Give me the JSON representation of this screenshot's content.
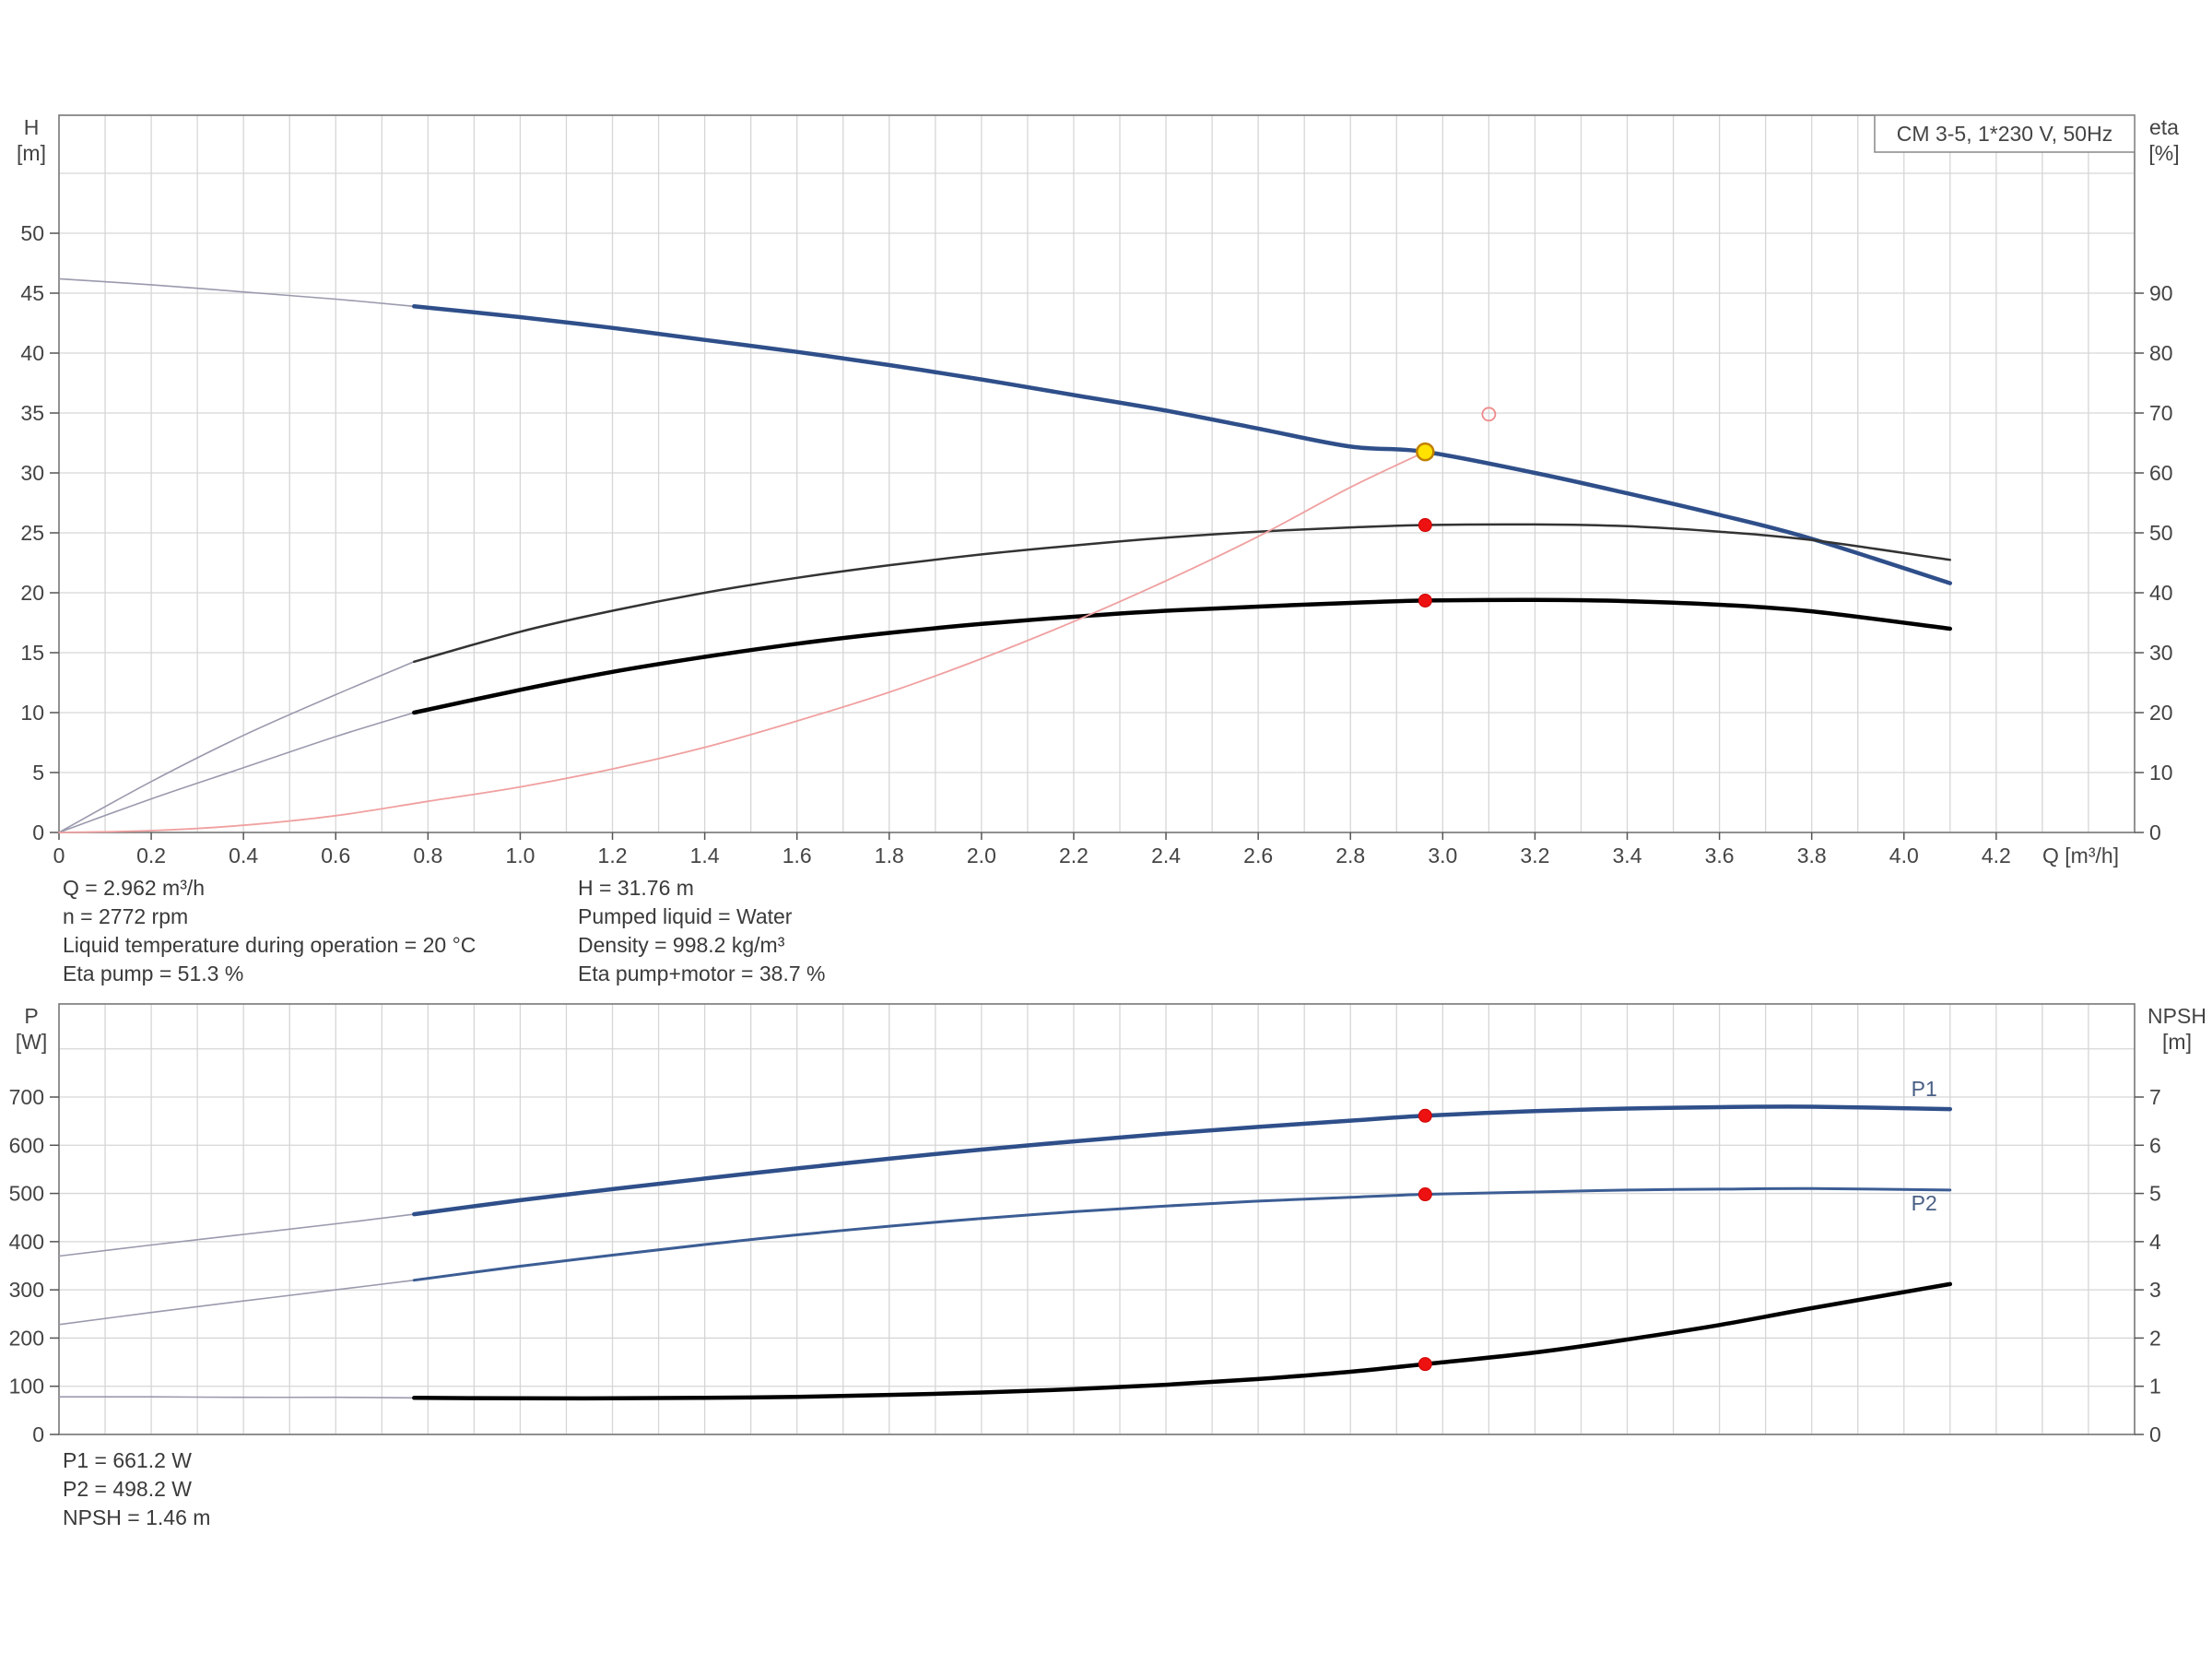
{
  "chart_data": [
    {
      "type": "line",
      "legend_box": "CM 3-5, 1*230 V, 50Hz",
      "legend_placement": "top-right",
      "grid": true,
      "x_axis": {
        "label": "Q [m³/h]",
        "range": [
          0,
          4.5
        ],
        "ticks": [
          "0",
          "0.2",
          "0.4",
          "0.6",
          "0.8",
          "1.0",
          "1.2",
          "1.4",
          "1.6",
          "1.8",
          "2.0",
          "2.2",
          "2.4",
          "2.6",
          "2.8",
          "3.0",
          "3.2",
          "3.4",
          "3.6",
          "3.8",
          "4.0",
          "4.2"
        ]
      },
      "y_left": {
        "label_top": "H",
        "label_unit": "[m]",
        "range": [
          0,
          50
        ],
        "ticks": [
          "0",
          "5",
          "10",
          "15",
          "20",
          "25",
          "30",
          "35",
          "40",
          "45",
          "50"
        ]
      },
      "y_right": {
        "label_top": "eta",
        "label_unit": "[%]",
        "range": [
          0,
          100
        ],
        "ticks": [
          "0",
          "10",
          "20",
          "30",
          "40",
          "50",
          "60",
          "70",
          "80",
          "90"
        ]
      },
      "series": [
        {
          "key": "H",
          "axis": "left",
          "color": "#2f4f8a",
          "thin_x": [
            0,
            0.2,
            0.4,
            0.6,
            0.77
          ],
          "thin_y": [
            46.2,
            45.7,
            45.1,
            44.5,
            43.9
          ],
          "x": [
            0.77,
            1.0,
            1.2,
            1.4,
            1.6,
            1.8,
            2.0,
            2.2,
            2.4,
            2.6,
            2.8,
            2.962,
            3.2,
            3.4,
            3.6,
            3.8,
            4.1
          ],
          "y": [
            43.9,
            43.0,
            42.1,
            41.1,
            40.1,
            39.0,
            37.8,
            36.5,
            35.2,
            33.7,
            32.2,
            31.76,
            30.0,
            28.3,
            26.5,
            24.5,
            20.8
          ]
        },
        {
          "key": "eta_pump",
          "axis": "right",
          "color": "#333333",
          "thin_x": [
            0,
            0.2,
            0.4,
            0.6,
            0.77
          ],
          "thin_y": [
            0,
            8.5,
            16.2,
            23.0,
            28.5
          ],
          "x": [
            0.77,
            1.0,
            1.2,
            1.4,
            1.6,
            1.8,
            2.0,
            2.2,
            2.4,
            2.6,
            2.8,
            2.962,
            3.2,
            3.4,
            3.6,
            3.8,
            4.1
          ],
          "y": [
            28.5,
            33.5,
            37.0,
            40.0,
            42.5,
            44.6,
            46.4,
            47.9,
            49.2,
            50.2,
            50.9,
            51.3,
            51.4,
            51.1,
            50.2,
            48.8,
            45.5
          ]
        },
        {
          "key": "eta_pump_motor",
          "axis": "right",
          "color": "#000000",
          "thin_x": [
            0,
            0.2,
            0.4,
            0.6,
            0.77
          ],
          "thin_y": [
            0,
            5.6,
            10.8,
            16.0,
            20.0
          ],
          "x": [
            0.77,
            1.0,
            1.2,
            1.4,
            1.6,
            1.8,
            2.0,
            2.2,
            2.4,
            2.6,
            2.8,
            2.962,
            3.2,
            3.4,
            3.6,
            3.8,
            4.1
          ],
          "y": [
            20.0,
            23.8,
            26.8,
            29.3,
            31.5,
            33.3,
            34.8,
            36.0,
            37.0,
            37.7,
            38.3,
            38.7,
            38.8,
            38.6,
            38.0,
            36.9,
            34.0
          ]
        },
        {
          "key": "system",
          "axis": "left",
          "color": "#f0a0a0",
          "x": [
            0,
            0.2,
            0.4,
            0.6,
            0.8,
            1.0,
            1.2,
            1.4,
            1.6,
            1.8,
            2.0,
            2.2,
            2.4,
            2.6,
            2.8,
            2.962
          ],
          "y": [
            0,
            0.15,
            0.6,
            1.4,
            2.6,
            3.8,
            5.3,
            7.1,
            9.3,
            11.7,
            14.5,
            17.6,
            21.0,
            24.7,
            28.8,
            31.76
          ]
        }
      ],
      "duty_markers": [
        {
          "x": 2.962,
          "y": 31.76,
          "axis": "left",
          "style": "yellow"
        },
        {
          "x": 2.962,
          "y": 51.3,
          "axis": "right",
          "style": "red"
        },
        {
          "x": 2.962,
          "y": 38.7,
          "axis": "right",
          "style": "red"
        }
      ],
      "requested_point": {
        "x": 3.1,
        "y": 34.9,
        "axis": "left"
      }
    },
    {
      "type": "line",
      "grid": true,
      "x_axis": {
        "range": [
          0,
          4.5
        ]
      },
      "y_left": {
        "label_top": "P",
        "label_unit": "[W]",
        "range": [
          0,
          800
        ],
        "ticks": [
          "0",
          "100",
          "200",
          "300",
          "400",
          "500",
          "600",
          "700"
        ]
      },
      "y_right": {
        "label_top": "NPSH",
        "label_unit": "[m]",
        "range": [
          0,
          8
        ],
        "ticks": [
          "0",
          "1",
          "2",
          "3",
          "4",
          "5",
          "6",
          "7"
        ]
      },
      "series": [
        {
          "key": "P1",
          "name": "P1",
          "axis": "left",
          "color": "#2f4f8a",
          "thin_x": [
            0,
            0.2,
            0.4,
            0.6,
            0.77
          ],
          "thin_y": [
            370,
            393,
            415,
            437,
            457
          ],
          "x": [
            0.77,
            1.0,
            1.2,
            1.4,
            1.6,
            1.8,
            2.0,
            2.2,
            2.4,
            2.6,
            2.8,
            2.962,
            3.2,
            3.4,
            3.6,
            3.8,
            4.1
          ],
          "y": [
            457,
            486,
            509,
            531,
            552,
            572,
            591,
            608,
            624,
            638,
            651,
            661.2,
            671,
            676,
            679,
            680,
            675
          ]
        },
        {
          "key": "P2",
          "name": "P2",
          "axis": "left",
          "color": "#3c5d94",
          "thin_x": [
            0,
            0.2,
            0.4,
            0.6,
            0.77
          ],
          "thin_y": [
            228,
            253,
            277,
            300,
            320
          ],
          "x": [
            0.77,
            1.0,
            1.2,
            1.4,
            1.6,
            1.8,
            2.0,
            2.2,
            2.4,
            2.6,
            2.8,
            2.962,
            3.2,
            3.4,
            3.6,
            3.8,
            4.1
          ],
          "y": [
            320,
            349,
            372,
            394,
            414,
            432,
            448,
            462,
            474,
            484,
            492,
            498.2,
            503,
            507,
            509,
            510,
            507
          ]
        },
        {
          "key": "NPSH",
          "axis": "right",
          "color": "#000000",
          "thin_x": [
            0,
            0.2,
            0.4,
            0.6,
            0.77
          ],
          "thin_y": [
            0.78,
            0.78,
            0.77,
            0.77,
            0.76
          ],
          "x": [
            0.77,
            1.0,
            1.2,
            1.4,
            1.6,
            1.8,
            2.0,
            2.2,
            2.4,
            2.6,
            2.8,
            2.962,
            3.2,
            3.4,
            3.6,
            3.8,
            4.1
          ],
          "y": [
            0.76,
            0.75,
            0.75,
            0.76,
            0.78,
            0.82,
            0.87,
            0.94,
            1.03,
            1.15,
            1.3,
            1.46,
            1.7,
            1.97,
            2.27,
            2.62,
            3.12
          ]
        }
      ],
      "duty_markers": [
        {
          "x": 2.962,
          "y": 661.2,
          "axis": "left",
          "style": "red"
        },
        {
          "x": 2.962,
          "y": 498.2,
          "axis": "left",
          "style": "red"
        },
        {
          "x": 2.962,
          "y": 1.46,
          "axis": "right",
          "style": "red"
        }
      ]
    }
  ],
  "info": {
    "col1": [
      "Q = 2.962 m³/h",
      "n = 2772 rpm",
      "Liquid temperature during operation = 20 °C",
      "Eta pump = 51.3 %"
    ],
    "col2": [
      "H = 31.76 m",
      "Pumped liquid = Water",
      "Density = 998.2 kg/m³",
      "Eta pump+motor = 38.7 %"
    ],
    "lower": [
      "P1 = 661.2 W",
      "P2 = 498.2 W",
      "NPSH = 1.46 m"
    ]
  }
}
